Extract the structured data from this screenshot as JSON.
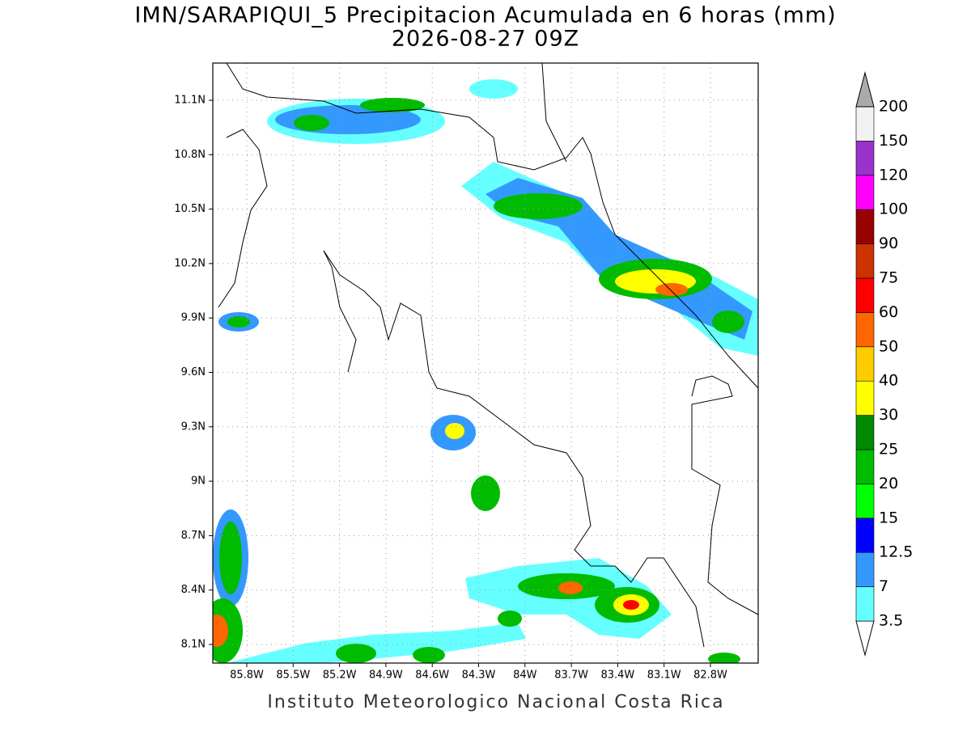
{
  "title": "IMN/SARAPIQUI_5 Precipitacion Acumulada en 6 horas (mm)",
  "subtitle": "2026-08-27 09Z",
  "footer": "Instituto Meteorologico Nacional Costa Rica",
  "lat_ticks": [
    "11.1N",
    "10.8N",
    "10.5N",
    "10.2N",
    "9.9N",
    "9.6N",
    "9.3N",
    "9N",
    "8.7N",
    "8.4N",
    "8.1N"
  ],
  "lon_ticks": [
    "85.8W",
    "85.5W",
    "85.2W",
    "84.9W",
    "84.6W",
    "84.3W",
    "84W",
    "83.7W",
    "83.4W",
    "83.1W",
    "82.8W"
  ],
  "colorbar": {
    "levels": [
      "3.5",
      "7",
      "12.5",
      "15",
      "20",
      "25",
      "30",
      "40",
      "50",
      "60",
      "75",
      "90",
      "100",
      "120",
      "150",
      "200"
    ],
    "colors": [
      "#ffffff",
      "#66ffff",
      "#3399ff",
      "#0000ff",
      "#00ff00",
      "#00bb00",
      "#008800",
      "#ffff00",
      "#ffcc00",
      "#ff6600",
      "#ff0000",
      "#cc3300",
      "#990000",
      "#ff00ff",
      "#9933cc",
      "#f2f2f2",
      "#aaaaaa"
    ]
  }
}
